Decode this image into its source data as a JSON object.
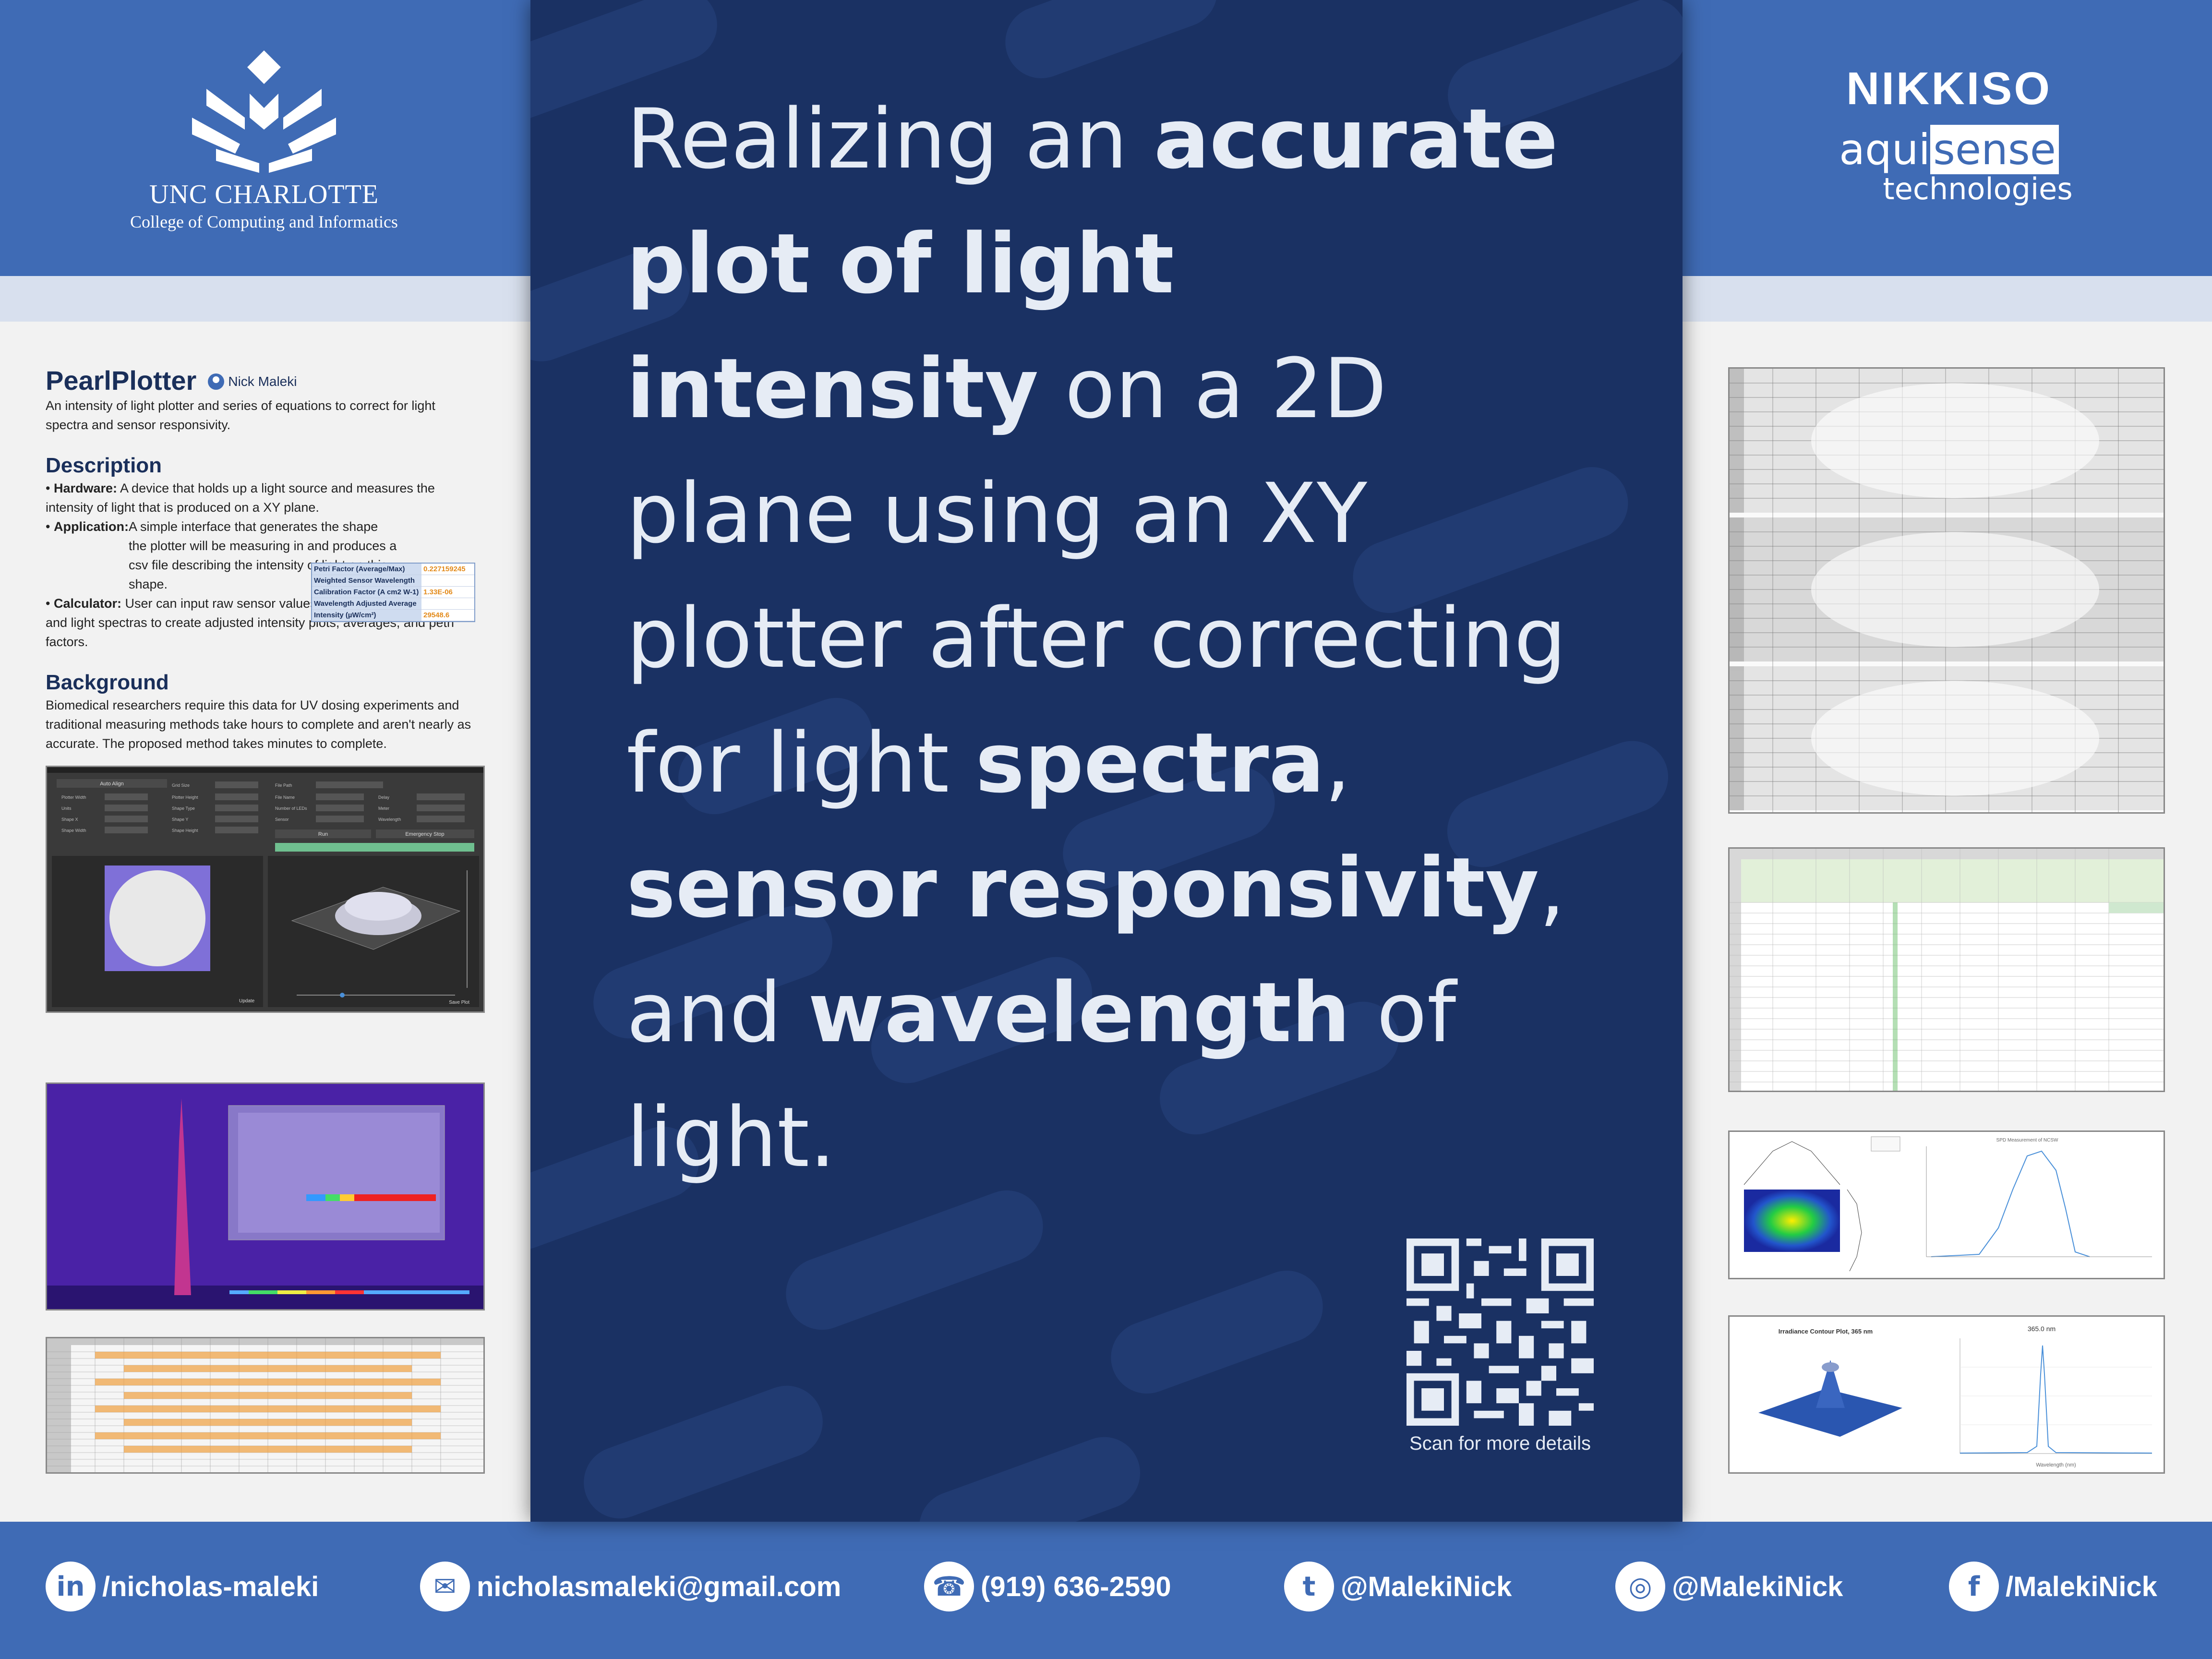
{
  "headline": {
    "p1": "Realizing an ",
    "b1": "accurate plot of light intensity",
    "p2": " on a 2D plane using an XY plotter after correcting for light ",
    "b2": "spectra",
    "p3": ", ",
    "b3": "sensor responsivity",
    "p4": ", and ",
    "b4": "wavelength",
    "p5": " of light."
  },
  "qr_caption": "Scan for more details",
  "unc": {
    "name": "UNC CHARLOTTE",
    "college": "College of Computing and Informatics"
  },
  "sponsor": {
    "name": "NIKKISO",
    "aqui": "aqui",
    "sense": "sense",
    "tech": "technologies"
  },
  "project": {
    "title": "PearlPlotter",
    "author": "Nick Maleki",
    "summary": "An intensity of light plotter and series of equations to correct for light spectra and sensor responsivity."
  },
  "description": {
    "heading": "Description",
    "hardware_label": "Hardware:",
    "hardware_text": " A device that holds up a light source and measures the intensity of light that is produced on a XY plane.",
    "application_label": "Application:",
    "application_text": " A simple interface that generates the shape the plotter will be measuring in and produces a csv file describing the intensity of light on this shape.",
    "calculator_label": "Calculator:",
    "calculator_text": " User can input raw sensor values, sensor calibration curves, and light spectras to create adjusted intensity plots, averages, and petri factors."
  },
  "calc_table": [
    {
      "key": "Petri Factor (Average/Max)",
      "value": "0.227159245"
    },
    {
      "key": "Weighted Sensor Wavelength",
      "value": ""
    },
    {
      "key": "Calibration Factor (A cm2 W-1)",
      "value": "1.33E-06"
    },
    {
      "key": "Wavelength Adjusted Average",
      "value": ""
    },
    {
      "key": "Intensity (µW/cm²)",
      "value": "29548.6"
    }
  ],
  "background": {
    "heading": "Background",
    "text": "Biomedical researchers require this data for UV dosing experiments and traditional measuring methods take hours to complete and aren't nearly as accurate. The proposed method takes minutes to complete."
  },
  "app_ui": {
    "buttons": [
      "Auto Align",
      "Run",
      "Emergency Stop",
      "Update",
      "Save Plot"
    ],
    "fields": [
      "Plotter Width",
      "Units",
      "Shape X",
      "Shape Width",
      "Grid Size",
      "Plotter Height",
      "Shape Type",
      "Shape Y",
      "Shape Height",
      "File Path",
      "File Name",
      "Number of LEDs",
      "Sensor",
      "Delay",
      "Meter",
      "Wavelength"
    ]
  },
  "charts": {
    "contour_title": "Irradiance Contour Plot, 365 nm",
    "spectrum_title": "365.0 nm",
    "spectrum_xlabel": "Wavelength (nm)",
    "spd_title": "SPD Measurement of NCSW"
  },
  "contacts": [
    {
      "icon": "in",
      "text": "/nicholas-maleki"
    },
    {
      "icon": "✉",
      "text": "nicholasmaleki@gmail.com"
    },
    {
      "icon": "☎",
      "text": "(919) 636-2590"
    },
    {
      "icon": "t",
      "text": "@MalekiNick"
    },
    {
      "icon": "◎",
      "text": "@MalekiNick"
    },
    {
      "icon": "f",
      "text": "/MalekiNick"
    }
  ],
  "colors": {
    "brand_blue": "#3f6bb5",
    "panel_navy": "#1a3163",
    "accent_orange": "#e38b1c"
  }
}
